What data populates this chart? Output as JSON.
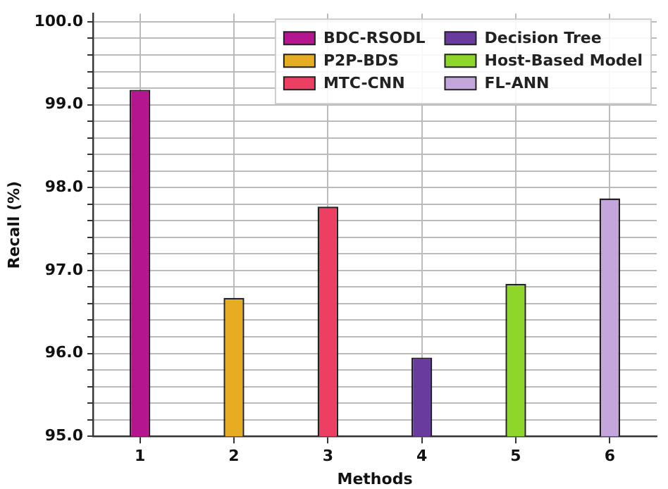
{
  "chart_data": {
    "type": "bar",
    "xlabel": "Methods",
    "ylabel": "Recall (%)",
    "categories": [
      "1",
      "2",
      "3",
      "4",
      "5",
      "6"
    ],
    "series": [
      {
        "name": "BDC-RSODL",
        "color": "#b5168f",
        "values": [
          99.18,
          null,
          null,
          null,
          null,
          null
        ]
      },
      {
        "name": "P2P-BDS",
        "color": "#e6ad22",
        "values": [
          null,
          96.67,
          null,
          null,
          null,
          null
        ]
      },
      {
        "name": "MTC-CNN",
        "color": "#ec3f62",
        "values": [
          null,
          null,
          97.77,
          null,
          null,
          null
        ]
      },
      {
        "name": "Decision Tree",
        "color": "#6a3b9f",
        "values": [
          null,
          null,
          null,
          95.95,
          null,
          null
        ]
      },
      {
        "name": "Host-Based Model",
        "color": "#8fd62b",
        "values": [
          null,
          null,
          null,
          null,
          96.84,
          null
        ]
      },
      {
        "name": "FL-ANN",
        "color": "#c4a5dc",
        "values": [
          null,
          null,
          null,
          null,
          null,
          97.87
        ]
      }
    ],
    "ylim": [
      95,
      100.1
    ],
    "yticks": [
      {
        "value": 95,
        "label": "95.0"
      },
      {
        "value": 95.2,
        "label": null
      },
      {
        "value": 95.4,
        "label": null
      },
      {
        "value": 95.6,
        "label": null
      },
      {
        "value": 95.8,
        "label": null
      },
      {
        "value": 96,
        "label": "96.0"
      },
      {
        "value": 96.2,
        "label": null
      },
      {
        "value": 96.4,
        "label": null
      },
      {
        "value": 96.6,
        "label": null
      },
      {
        "value": 96.8,
        "label": null
      },
      {
        "value": 97,
        "label": "97.0"
      },
      {
        "value": 97.2,
        "label": null
      },
      {
        "value": 97.4,
        "label": null
      },
      {
        "value": 97.6,
        "label": null
      },
      {
        "value": 97.8,
        "label": null
      },
      {
        "value": 98,
        "label": "98.0"
      },
      {
        "value": 98.2,
        "label": null
      },
      {
        "value": 98.4,
        "label": null
      },
      {
        "value": 98.6,
        "label": null
      },
      {
        "value": 98.8,
        "label": null
      },
      {
        "value": 99,
        "label": "99.0"
      },
      {
        "value": 99.2,
        "label": null
      },
      {
        "value": 99.4,
        "label": null
      },
      {
        "value": 99.6,
        "label": null
      },
      {
        "value": 99.8,
        "label": null
      },
      {
        "value": 100,
        "label": "100.0"
      }
    ],
    "grid": true,
    "legend": "top right"
  }
}
